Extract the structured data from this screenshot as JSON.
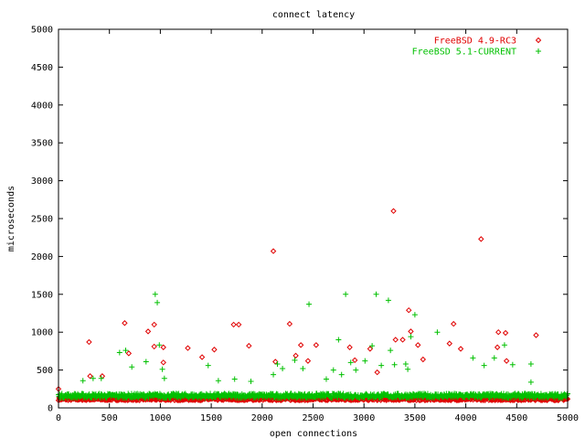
{
  "chart_data": {
    "type": "scatter",
    "title": "connect latency",
    "xlabel": "open connections",
    "ylabel": "microseconds",
    "xlim": [
      0,
      5000
    ],
    "ylim": [
      0,
      5000
    ],
    "xticks": [
      "0",
      "500",
      "1000",
      "1500",
      "2000",
      "2500",
      "3000",
      "3500",
      "4000",
      "4500",
      "5000"
    ],
    "yticks": [
      "0",
      "500",
      "1000",
      "1500",
      "2000",
      "2500",
      "3000",
      "3500",
      "4000",
      "4500",
      "5000"
    ],
    "grid": false,
    "legend_position": "top-right",
    "series": [
      {
        "name": "FreeBSD 4.9-RC3",
        "color": "#e00000",
        "marker": "diamond",
        "baseline_band": [
          100,
          135
        ],
        "points": [
          [
            0,
            250
          ],
          [
            300,
            870
          ],
          [
            310,
            420
          ],
          [
            430,
            420
          ],
          [
            650,
            1120
          ],
          [
            690,
            720
          ],
          [
            880,
            1010
          ],
          [
            940,
            1100
          ],
          [
            940,
            810
          ],
          [
            1030,
            800
          ],
          [
            1030,
            600
          ],
          [
            1270,
            790
          ],
          [
            1410,
            670
          ],
          [
            1530,
            770
          ],
          [
            1720,
            1100
          ],
          [
            1770,
            1100
          ],
          [
            1870,
            820
          ],
          [
            2110,
            2070
          ],
          [
            2130,
            610
          ],
          [
            2270,
            1110
          ],
          [
            2330,
            690
          ],
          [
            2380,
            830
          ],
          [
            2450,
            620
          ],
          [
            2530,
            830
          ],
          [
            2860,
            800
          ],
          [
            2910,
            630
          ],
          [
            3060,
            780
          ],
          [
            3130,
            470
          ],
          [
            3290,
            2600
          ],
          [
            3310,
            900
          ],
          [
            3380,
            900
          ],
          [
            3440,
            1290
          ],
          [
            3460,
            1010
          ],
          [
            3530,
            830
          ],
          [
            3580,
            640
          ],
          [
            3840,
            850
          ],
          [
            3880,
            1110
          ],
          [
            3950,
            780
          ],
          [
            4150,
            2230
          ],
          [
            4310,
            800
          ],
          [
            4320,
            1000
          ],
          [
            4390,
            990
          ],
          [
            4400,
            620
          ],
          [
            4690,
            960
          ]
        ]
      },
      {
        "name": "FreeBSD 5.1-CURRENT",
        "color": "#00c000",
        "marker": "plus",
        "baseline_band": [
          130,
          190
        ],
        "points": [
          [
            240,
            360
          ],
          [
            340,
            390
          ],
          [
            420,
            390
          ],
          [
            600,
            730
          ],
          [
            660,
            760
          ],
          [
            720,
            540
          ],
          [
            860,
            610
          ],
          [
            950,
            1500
          ],
          [
            970,
            1390
          ],
          [
            990,
            830
          ],
          [
            1020,
            510
          ],
          [
            1040,
            390
          ],
          [
            1470,
            560
          ],
          [
            1570,
            360
          ],
          [
            1730,
            380
          ],
          [
            1890,
            350
          ],
          [
            2110,
            440
          ],
          [
            2150,
            580
          ],
          [
            2200,
            520
          ],
          [
            2320,
            630
          ],
          [
            2400,
            520
          ],
          [
            2460,
            1370
          ],
          [
            2630,
            380
          ],
          [
            2700,
            500
          ],
          [
            2750,
            900
          ],
          [
            2780,
            440
          ],
          [
            2820,
            1500
          ],
          [
            2870,
            600
          ],
          [
            2920,
            500
          ],
          [
            3010,
            620
          ],
          [
            3080,
            820
          ],
          [
            3120,
            1500
          ],
          [
            3170,
            560
          ],
          [
            3240,
            1420
          ],
          [
            3260,
            760
          ],
          [
            3300,
            570
          ],
          [
            3410,
            580
          ],
          [
            3430,
            510
          ],
          [
            3460,
            940
          ],
          [
            3500,
            1230
          ],
          [
            3720,
            1000
          ],
          [
            4070,
            660
          ],
          [
            4180,
            560
          ],
          [
            4280,
            660
          ],
          [
            4380,
            830
          ],
          [
            4460,
            570
          ],
          [
            4640,
            580
          ],
          [
            4640,
            340
          ]
        ]
      }
    ]
  }
}
